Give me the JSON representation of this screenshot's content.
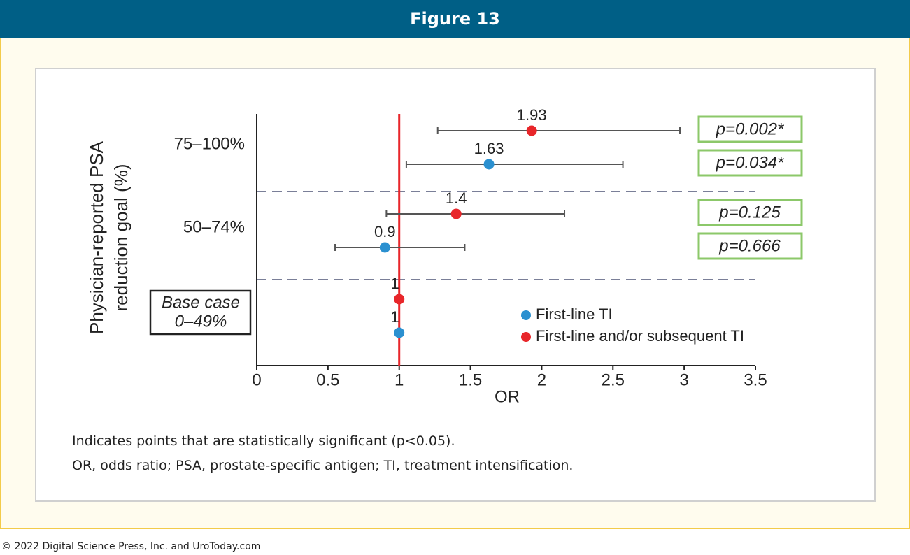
{
  "figure_title": "Figure 13",
  "notes": [
    "Indicates points that are statistically significant (p<0.05).",
    "OR, odds ratio; PSA, prostate-specific antigen; TI, treatment intensification."
  ],
  "copyright": "© 2022 Digital Science Press, Inc. and UroToday.com",
  "chart_data": {
    "type": "forest",
    "ylabel": [
      "Physician-reported PSA",
      "reduction goal (%)"
    ],
    "xlabel": "OR",
    "categories": [
      "75–100%",
      "50–74%",
      [
        "Base case",
        "0–49%"
      ]
    ],
    "series": [
      {
        "name": "First-line TI",
        "color": "#2b90d0",
        "values": [
          1.63,
          0.9,
          1
        ],
        "ci_low": [
          1.05,
          0.55,
          null
        ],
        "ci_high": [
          2.57,
          1.46,
          null
        ],
        "p_labels": [
          "p=0.034*",
          "p=0.666",
          null
        ]
      },
      {
        "name": "First-line and/or subsequent TI",
        "color": "#e8262a",
        "values": [
          1.93,
          1.4,
          1
        ],
        "ci_low": [
          1.27,
          0.91,
          null
        ],
        "ci_high": [
          2.97,
          2.16,
          null
        ],
        "p_labels": [
          "p=0.002*",
          "p=0.125",
          null
        ]
      }
    ],
    "reference_line": 1,
    "reference_color": "#e8262a",
    "xlim": [
      0,
      3.5
    ],
    "xticks": [
      0,
      0.5,
      1,
      1.5,
      2,
      2.5,
      3,
      3.5
    ]
  }
}
